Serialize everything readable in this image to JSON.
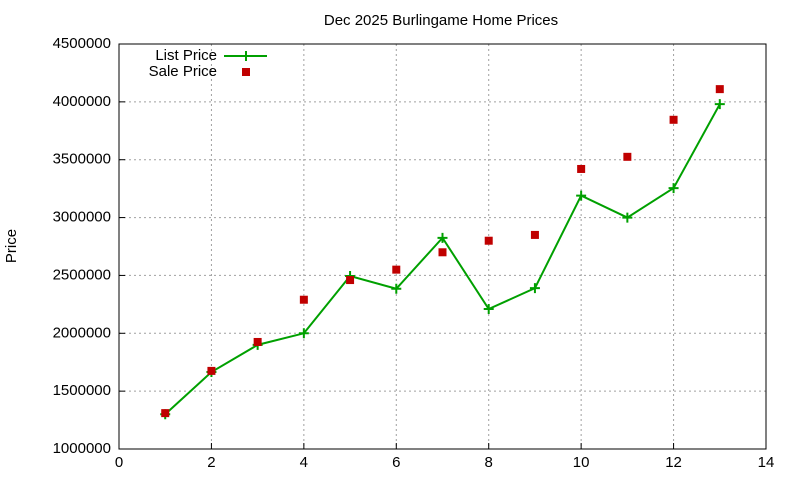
{
  "chart_data": {
    "type": "line",
    "title": "Dec 2025 Burlingame Home Prices",
    "y_label": "Price",
    "x": [
      1,
      2,
      3,
      4,
      5,
      6,
      7,
      8,
      9,
      10,
      11,
      12,
      13
    ],
    "series": [
      {
        "name": "List Price",
        "color": "#00a000",
        "style": "linespoints",
        "values": [
          1300000,
          1665000,
          1900000,
          2000000,
          2495000,
          2385000,
          2825000,
          2210000,
          2390000,
          3190000,
          3000000,
          3255000,
          3980000
        ]
      },
      {
        "name": "Sale Price",
        "color": "#c00000",
        "style": "points",
        "values": [
          1310000,
          1675000,
          1925000,
          2290000,
          2460000,
          2550000,
          2700000,
          2800000,
          2850000,
          3420000,
          3525000,
          3845000,
          4110000
        ]
      }
    ],
    "xlim": [
      0,
      14
    ],
    "xticks": [
      0,
      2,
      4,
      6,
      8,
      10,
      12,
      14
    ],
    "ylim": [
      1000000,
      4500000
    ],
    "yticks": [
      1000000,
      1500000,
      2000000,
      2500000,
      3000000,
      3500000,
      4000000,
      4500000
    ],
    "grid": true,
    "legend": "top-left"
  }
}
